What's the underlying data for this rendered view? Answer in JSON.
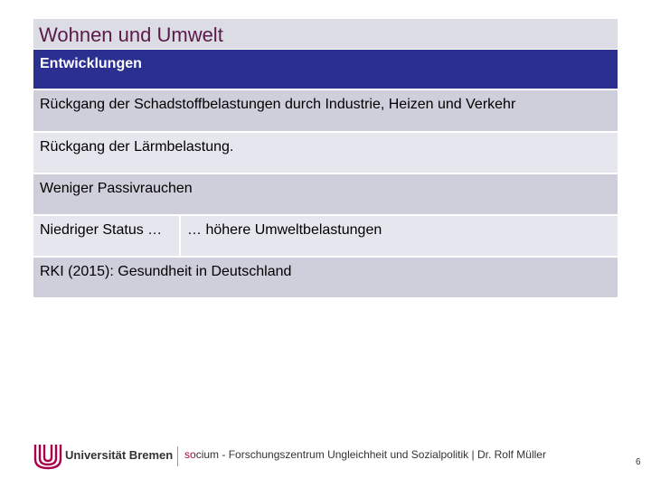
{
  "title": "Wohnen und Umwelt",
  "table": {
    "header": "Entwicklungen",
    "rows": [
      "Rückgang der Schadstoffbelastungen durch Industrie, Heizen und Verkehr",
      "Rückgang der Lärmbelastung.",
      "Weniger Passivrauchen"
    ],
    "split_row": {
      "left": "Niedriger Status …",
      "right": "… höhere Umweltbelastungen"
    },
    "source_row": "RKI (2015): Gesundheit in Deutschland"
  },
  "footer": {
    "university": "Universität Bremen",
    "institute_prefix": "so",
    "institute_rest": "cium - Forschungszentrum Ungleichheit und Sozialpolitik | Dr. Rolf Müller",
    "accent_color": "#a8004c"
  },
  "page_number": "6"
}
